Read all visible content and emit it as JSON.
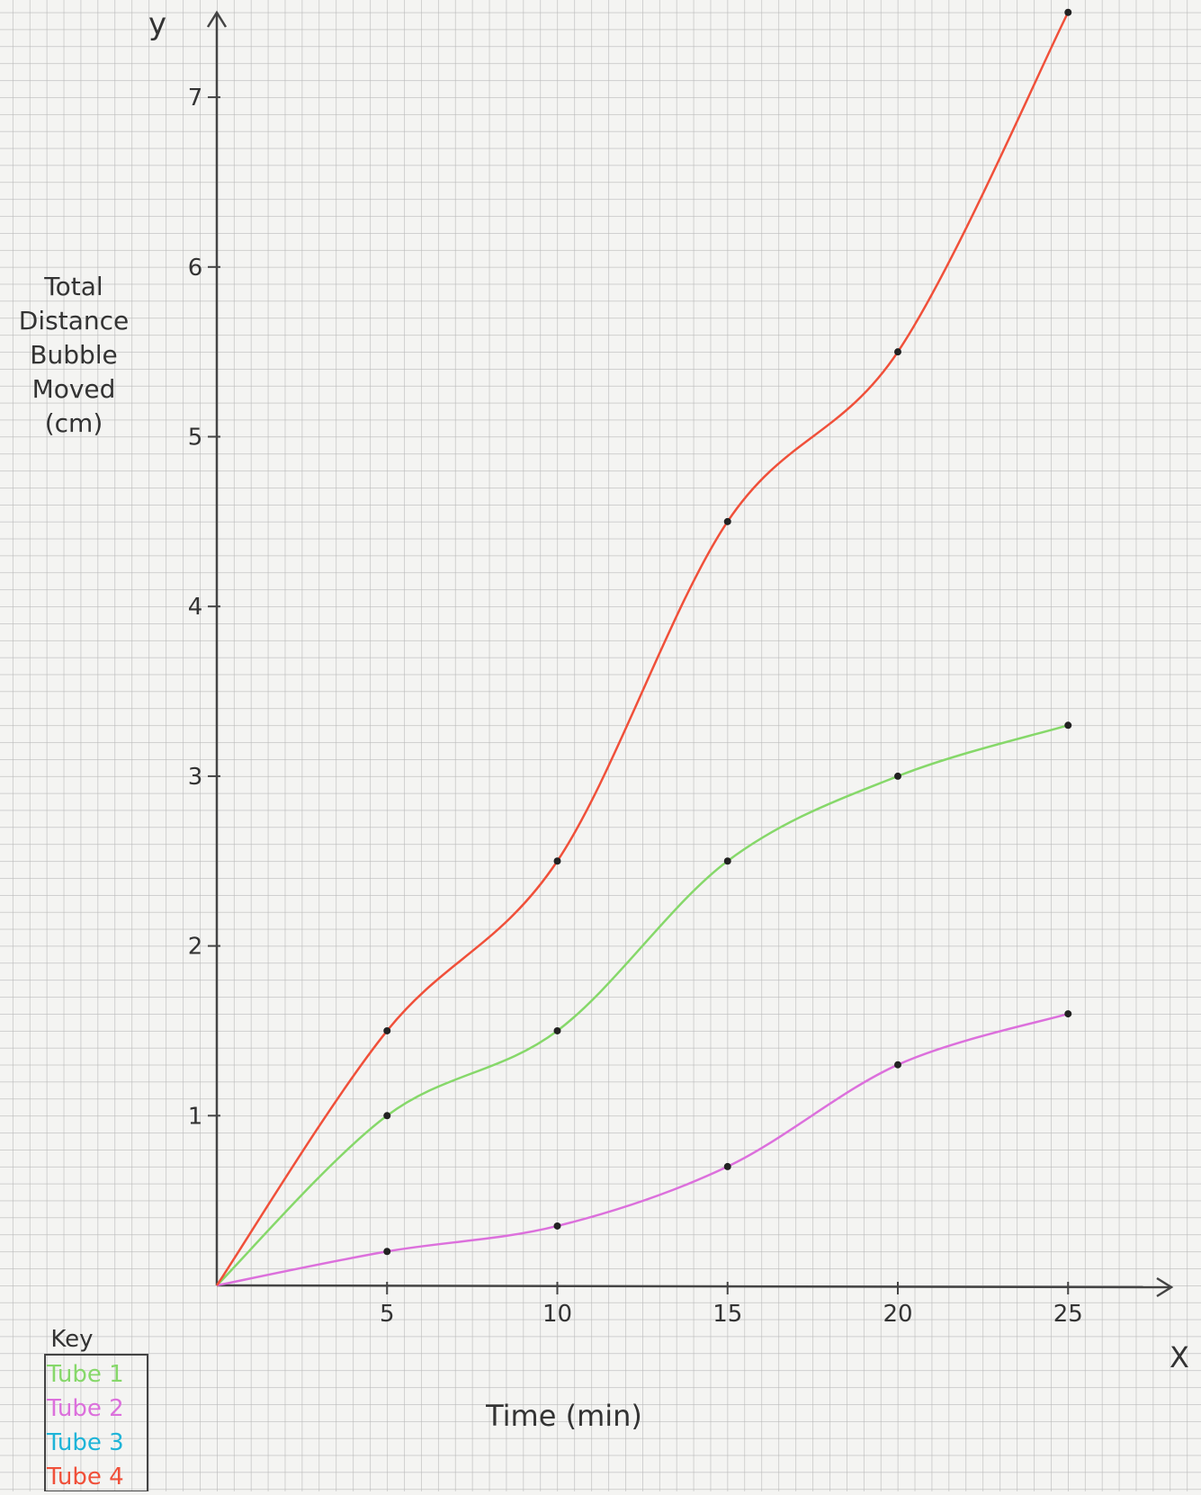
{
  "chart_data": {
    "type": "line",
    "axis_names": {
      "x": "X",
      "y": "y"
    },
    "xlabel": "Time (min)",
    "ylabel": [
      "Total",
      "Distance",
      "Bubble",
      "Moved",
      "(cm)"
    ],
    "legend_title": "Key",
    "x": [
      0,
      5,
      10,
      15,
      20,
      25
    ],
    "series": [
      {
        "name": "Tube 1",
        "color": "#86d86a",
        "values": [
          0,
          1.0,
          1.5,
          2.5,
          3.0,
          3.3
        ]
      },
      {
        "name": "Tube 2",
        "color": "#dc70dc",
        "values": [
          0,
          0.2,
          0.35,
          0.7,
          1.3,
          1.6
        ]
      },
      {
        "name": "Tube 3",
        "color": "#1eb4d8",
        "values": [
          null,
          null,
          null,
          null,
          null,
          null
        ]
      },
      {
        "name": "Tube 4",
        "color": "#f0503a",
        "values": [
          0,
          1.5,
          2.5,
          4.5,
          5.5,
          7.5
        ]
      }
    ],
    "xlim": [
      0,
      28
    ],
    "ylim": [
      0,
      7.5
    ],
    "xticks": [
      5,
      10,
      15,
      20,
      25
    ],
    "yticks": [
      1,
      2,
      3,
      4,
      5,
      6,
      7
    ]
  }
}
